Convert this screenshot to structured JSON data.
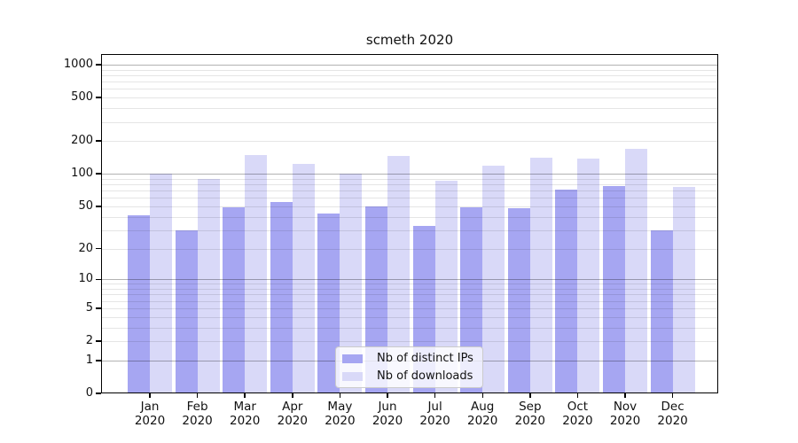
{
  "chart_data": {
    "type": "bar",
    "title": "scmeth 2020",
    "categories": [
      "Jan 2020",
      "Feb 2020",
      "Mar 2020",
      "Apr 2020",
      "May 2020",
      "Jun 2020",
      "Jul 2020",
      "Aug 2020",
      "Sep 2020",
      "Oct 2020",
      "Nov 2020",
      "Dec 2020"
    ],
    "series": [
      {
        "name": "Nb of distinct IPs",
        "color": "#a6a6f2",
        "values": [
          41,
          30,
          49,
          55,
          43,
          50,
          33,
          49,
          48,
          71,
          77,
          30
        ]
      },
      {
        "name": "Nb of downloads",
        "color": "#d9d9f8",
        "values": [
          100,
          89,
          150,
          124,
          100,
          146,
          86,
          119,
          140,
          137,
          170,
          75
        ]
      }
    ],
    "yscale": "log(value+1)",
    "yticks": [
      0,
      1,
      2,
      5,
      10,
      20,
      50,
      100,
      200,
      500,
      1000
    ],
    "ylim": [
      0,
      1250
    ],
    "xlabel": "",
    "ylabel": "",
    "grid": "horizontal, minor log gridlines",
    "legend_position": "lower center",
    "colors": {
      "axis": "#000000",
      "major_gridline": "#b3b3b3",
      "minor_gridline": "#e5e5e5",
      "background": "#ffffff",
      "text": "#111111"
    }
  }
}
